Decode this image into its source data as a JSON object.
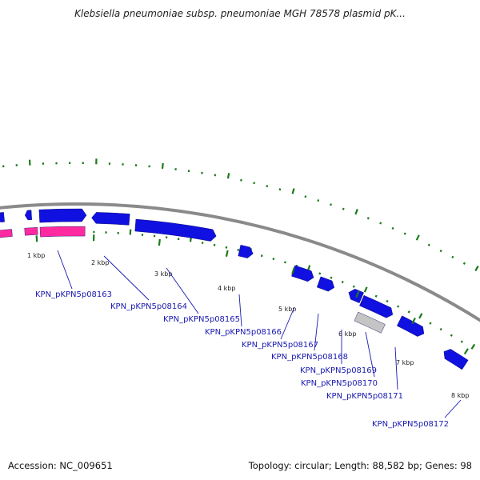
{
  "title": "Klebsiella pneumoniae subsp. pneumoniae MGH 78578 plasmid pK...",
  "accession_text": "Accession: NC_009651",
  "summary_text": "Topology: circular; Length: 88,582 bp; Genes: 98",
  "colors": {
    "backbone": "#8a8a8a",
    "gene": "#1010e0",
    "gene_pseudo": "#c4c4c4",
    "feature": "#ff2aa0",
    "gc_skew": "#1a7a1a",
    "label": "#1a1ab0"
  },
  "ticks": [
    {
      "label": "1 kbp"
    },
    {
      "label": "2 kbp"
    },
    {
      "label": "3 kbp"
    },
    {
      "label": "4 kbp"
    },
    {
      "label": "5 kbp"
    },
    {
      "label": "6 kbp"
    },
    {
      "label": "7 kbp"
    },
    {
      "label": "8 kbp"
    }
  ],
  "genes": [
    {
      "label": "KPN_pKPN5p08163"
    },
    {
      "label": "KPN_pKPN5p08164"
    },
    {
      "label": "KPN_pKPN5p08165"
    },
    {
      "label": "KPN_pKPN5p08166"
    },
    {
      "label": "KPN_pKPN5p08167"
    },
    {
      "label": "KPN_pKPN5p08168"
    },
    {
      "label": "KPN_pKPN5p08169"
    },
    {
      "label": "KPN_pKPN5p08170"
    },
    {
      "label": "KPN_pKPN5p08171"
    },
    {
      "label": "KPN_pKPN5p08172"
    }
  ]
}
